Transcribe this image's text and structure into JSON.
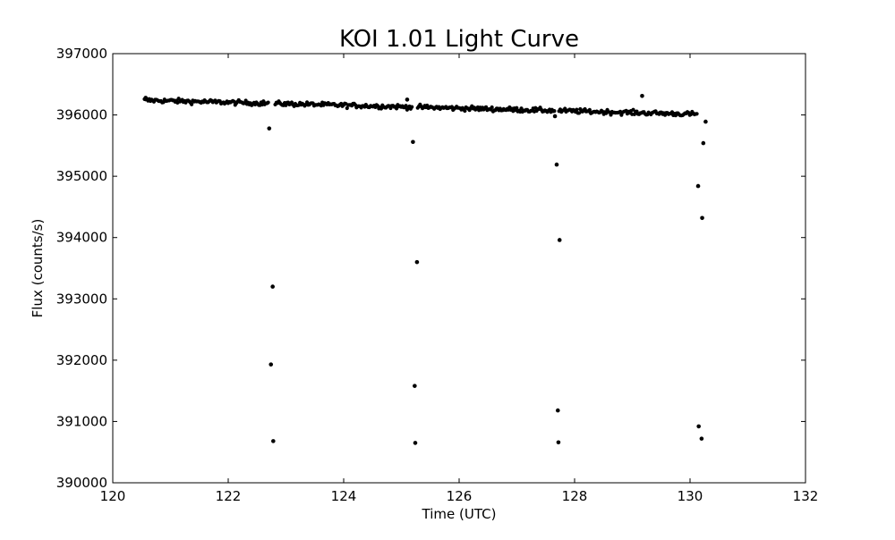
{
  "chart_data": {
    "type": "scatter",
    "title": "KOI 1.01 Light Curve",
    "xlabel": "Time (UTC)",
    "ylabel": "Flux (counts/s)",
    "xlim": [
      120,
      132
    ],
    "ylim": [
      390000,
      397000
    ],
    "x_ticks": [
      120,
      122,
      124,
      126,
      128,
      130,
      132
    ],
    "y_ticks": [
      390000,
      391000,
      392000,
      393000,
      394000,
      395000,
      396000,
      397000
    ],
    "grid": false,
    "marker_color": "#000000",
    "baseline": {
      "x_start": 120.55,
      "x_end": 130.2,
      "step": 0.0204,
      "flux_start": 396240,
      "flux_end": 396010,
      "scatter": 35,
      "gaps": [
        [
          122.7,
          122.81
        ],
        [
          125.2,
          125.28
        ],
        [
          127.66,
          127.73
        ],
        [
          130.13,
          130.22
        ]
      ]
    },
    "outliers": [
      {
        "x": 122.71,
        "y": 395780
      },
      {
        "x": 122.77,
        "y": 393200
      },
      {
        "x": 122.74,
        "y": 391930
      },
      {
        "x": 122.78,
        "y": 390680
      },
      {
        "x": 125.2,
        "y": 395560
      },
      {
        "x": 125.27,
        "y": 393600
      },
      {
        "x": 125.23,
        "y": 391580
      },
      {
        "x": 125.24,
        "y": 390650
      },
      {
        "x": 127.69,
        "y": 395190
      },
      {
        "x": 127.74,
        "y": 393960
      },
      {
        "x": 127.71,
        "y": 391180
      },
      {
        "x": 127.72,
        "y": 390660
      },
      {
        "x": 130.14,
        "y": 394840
      },
      {
        "x": 130.21,
        "y": 394320
      },
      {
        "x": 130.15,
        "y": 390920
      },
      {
        "x": 130.2,
        "y": 390720
      },
      {
        "x": 130.23,
        "y": 395540
      },
      {
        "x": 130.27,
        "y": 395890
      },
      {
        "x": 129.17,
        "y": 396310
      },
      {
        "x": 127.66,
        "y": 395980
      },
      {
        "x": 125.1,
        "y": 396250
      },
      {
        "x": 120.57,
        "y": 396280
      }
    ]
  }
}
